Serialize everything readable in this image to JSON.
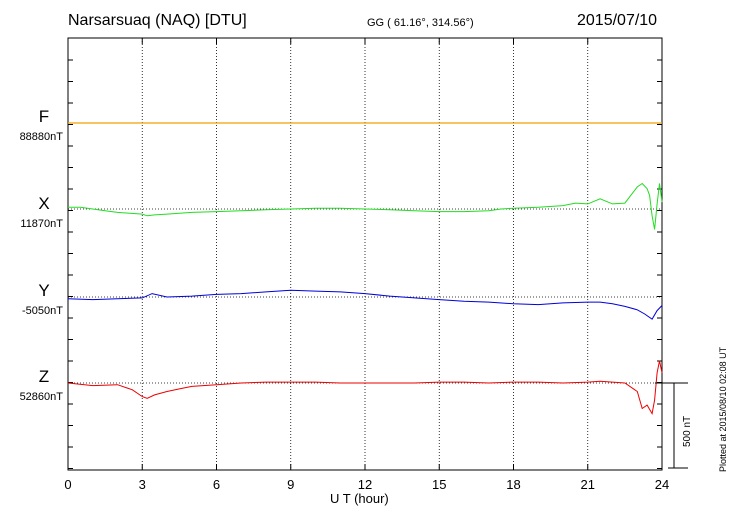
{
  "header": {
    "station": "Narsarsuaq (NAQ)  [DTU]",
    "coords": "GG ( 61.16°, 314.56°)",
    "date": "2015/07/10"
  },
  "plotted": "Plotted at 2015/08/10 02:08 UT",
  "scale_label": "500 nT",
  "colors": {
    "F": "#f0a000",
    "X": "#22dd22",
    "Y": "#0000dd",
    "Z": "#ee0000"
  },
  "chart_data": {
    "type": "line",
    "xlabel": "U T (hour)",
    "xlim": [
      0,
      24
    ],
    "xticks": [
      "0",
      "3",
      "6",
      "9",
      "12",
      "15",
      "18",
      "21",
      "24"
    ],
    "series": [
      {
        "name": "F",
        "baseline": "88880nT",
        "x": [
          0,
          24
        ],
        "y": [
          0,
          0
        ]
      },
      {
        "name": "X",
        "baseline": "11870nT",
        "x": [
          0,
          0.5,
          1,
          1.5,
          2,
          2.5,
          3,
          3.2,
          3.5,
          4,
          5,
          6,
          7,
          8,
          9,
          10,
          11,
          12,
          13,
          14,
          15,
          16,
          17,
          17.5,
          18,
          19,
          20,
          20.5,
          21,
          21.5,
          22,
          22.5,
          23,
          23.2,
          23.4,
          23.5,
          23.6,
          23.7,
          23.8,
          23.9,
          24
        ],
        "y": [
          10,
          10,
          0,
          -10,
          -20,
          -25,
          -30,
          -40,
          -35,
          -30,
          -20,
          -15,
          -10,
          -5,
          0,
          5,
          5,
          0,
          -5,
          -10,
          -15,
          -15,
          -10,
          0,
          5,
          10,
          20,
          35,
          30,
          60,
          30,
          35,
          130,
          150,
          120,
          80,
          -40,
          -120,
          30,
          150,
          40
        ]
      },
      {
        "name": "Y",
        "baseline": "-5050nT",
        "x": [
          0,
          1,
          2,
          3,
          3.4,
          4,
          5,
          6,
          7,
          8,
          9,
          10,
          11,
          12,
          13,
          14,
          15,
          16,
          17,
          18,
          19,
          20,
          21,
          21.5,
          22,
          22.5,
          23,
          23.3,
          23.6,
          23.8,
          24
        ],
        "y": [
          -10,
          -15,
          -10,
          -5,
          20,
          0,
          5,
          15,
          20,
          30,
          40,
          35,
          30,
          20,
          5,
          -5,
          -15,
          -25,
          -30,
          -40,
          -45,
          -35,
          -30,
          -30,
          -40,
          -55,
          -75,
          -100,
          -130,
          -80,
          -50
        ]
      },
      {
        "name": "Z",
        "baseline": "52860nT",
        "x": [
          0,
          1,
          2,
          2.6,
          3,
          3.2,
          3.5,
          4,
          4.5,
          5,
          6,
          7,
          8,
          9,
          10,
          11,
          12,
          13,
          14,
          15,
          16,
          17,
          18,
          19,
          20,
          21,
          21.5,
          22,
          22.5,
          23,
          23.2,
          23.4,
          23.6,
          23.7,
          23.8,
          23.9,
          24
        ],
        "y": [
          0,
          -15,
          -10,
          -40,
          -80,
          -90,
          -70,
          -50,
          -35,
          -20,
          -10,
          0,
          5,
          5,
          5,
          0,
          0,
          0,
          0,
          5,
          5,
          0,
          5,
          5,
          0,
          5,
          10,
          5,
          0,
          -50,
          -150,
          -130,
          -180,
          -100,
          60,
          130,
          60
        ]
      }
    ]
  }
}
